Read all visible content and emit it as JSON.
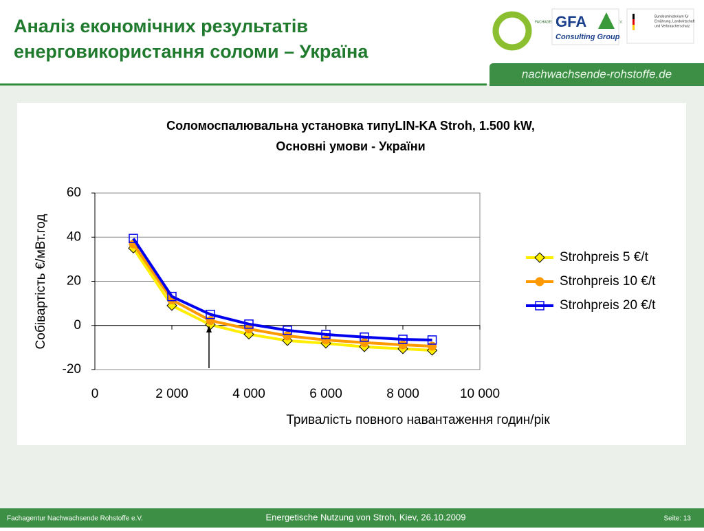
{
  "header": {
    "title_lines": [
      "Аналіз економічних результатів",
      "енерговикористання соломи – Україна"
    ],
    "website": "nachwachsende-rohstoffe.de",
    "logo_fnr": "FACHAGENTUR NACHWACHSENDE ROHSTOFFE e.V.",
    "logo_gfa": "GFA",
    "logo_gfa_sub": "Consulting Group",
    "logo_bmelv": [
      "Bundesministerium für",
      "Ernährung, Landwirtschaft",
      "und Verbraucherschutz"
    ]
  },
  "footer": {
    "left": "Fachagentur Nachwachsende Rohstoffe e.V.",
    "center": "Energetische Nutzung von Stroh, Kiev, 26.10.2009",
    "right": "Seite: 13"
  },
  "chart_data": {
    "type": "line",
    "title_lines": [
      "Соломоспалювальна установка типуLIN-KA Stroh, 1.500 kW,",
      "Основні умови - України"
    ],
    "x_label": "Тривалість повного навантаження годин/рік",
    "y_label": "Собівартість €/мВт.год",
    "x": [
      1000,
      2000,
      3000,
      4000,
      5000,
      6000,
      7000,
      8000,
      8760
    ],
    "series": [
      {
        "name": "Strohpreis 5 €/t",
        "color": "#ffee00",
        "marker": "diamond",
        "values": [
          35,
          9,
          0.3,
          -4,
          -6.9,
          -8.1,
          -9.7,
          -10.6,
          -11.3
        ]
      },
      {
        "name": "Strohpreis 10 €/t",
        "color": "#ff9900",
        "marker": "circle",
        "values": [
          36.9,
          11.6,
          2.2,
          -1.6,
          -4.7,
          -6.6,
          -7.8,
          -8.8,
          -9.4
        ]
      },
      {
        "name": "Strohpreis 20 €/t",
        "color": "#0000ee",
        "marker": "square",
        "values": [
          39.4,
          13.1,
          5,
          0.6,
          -2.2,
          -4.1,
          -5.3,
          -6.3,
          -6.6
        ]
      }
    ],
    "xlim": [
      0,
      10000
    ],
    "xticks": [
      0,
      {
        "value": 2000,
        "label": "2 000"
      },
      {
        "value": 4000,
        "label": "4 000"
      },
      {
        "value": 6000,
        "label": "6 000"
      },
      {
        "value": 8000,
        "label": "8 000"
      },
      {
        "value": 10000,
        "label": "10 000"
      }
    ],
    "ylim": [
      -20,
      60
    ],
    "yticks": [
      -20,
      0,
      20,
      40,
      60
    ],
    "grid": true,
    "legend": "right"
  }
}
